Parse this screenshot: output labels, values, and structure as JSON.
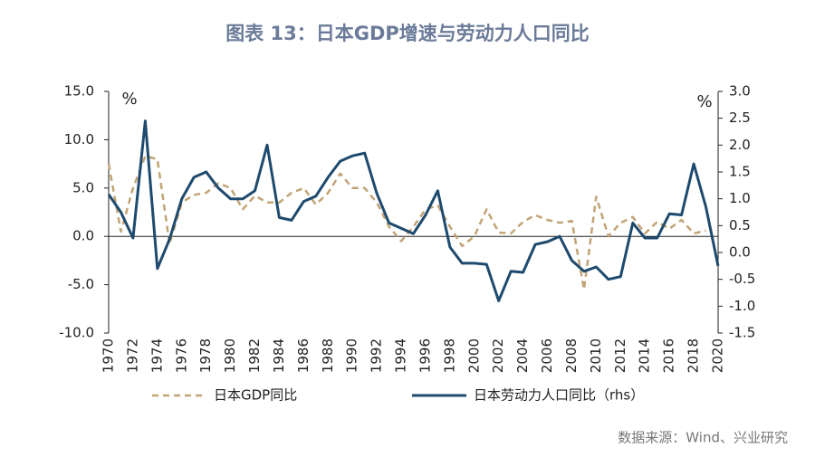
{
  "chart_data": {
    "type": "line",
    "title": "图表 13：日本GDP增速与劳动力人口同比",
    "y_unit": "%",
    "y2_unit": "%",
    "source": "数据来源：Wind、兴业研究",
    "categories": [
      "1970",
      null,
      "1972",
      null,
      "1974",
      null,
      "1976",
      null,
      "1978",
      null,
      "1980",
      null,
      "1982",
      null,
      "1984",
      null,
      "1986",
      null,
      "1988",
      null,
      "1990",
      null,
      "1992",
      null,
      "1994",
      null,
      "1996",
      null,
      "1998",
      null,
      "2000",
      null,
      "2002",
      null,
      "2004",
      null,
      "2006",
      null,
      "2008",
      null,
      "2010",
      null,
      "2012",
      null,
      "2014",
      null,
      "2016",
      null,
      "2018",
      null,
      "2020"
    ],
    "series": [
      {
        "name": "日本GDP同比",
        "color": "#c2a477",
        "dash": true,
        "values": [
          7.5,
          0.5,
          5.0,
          8.3,
          8.0,
          -0.8,
          3.5,
          4.3,
          4.5,
          5.5,
          5.0,
          2.8,
          4.2,
          3.5,
          3.5,
          4.5,
          5.0,
          3.3,
          4.5,
          6.5,
          5.0,
          5.0,
          3.5,
          1.0,
          -0.5,
          1.0,
          2.8,
          3.2,
          1.0,
          -1.0,
          0.0,
          2.8,
          0.4,
          0.3,
          1.5,
          2.2,
          1.7,
          1.4,
          1.6,
          -5.5,
          4.1,
          0.0,
          1.4,
          2.0,
          0.3,
          1.5,
          0.8,
          1.7,
          0.3,
          0.6,
          null
        ]
      },
      {
        "name": "日本劳动力人口同比（rhs）",
        "color": "#1e4a6e",
        "axis": "y2",
        "values": [
          1.08,
          0.75,
          0.27,
          2.45,
          -0.3,
          0.25,
          1.0,
          1.4,
          1.5,
          1.2,
          1.0,
          1.0,
          1.15,
          2.0,
          0.65,
          0.6,
          0.95,
          1.05,
          1.4,
          1.7,
          1.8,
          1.85,
          1.1,
          0.55,
          0.45,
          0.35,
          0.7,
          1.15,
          0.1,
          -0.2,
          -0.2,
          -0.22,
          -0.9,
          -0.35,
          -0.37,
          0.15,
          0.2,
          0.3,
          -0.15,
          -0.35,
          -0.27,
          -0.5,
          -0.45,
          0.55,
          0.27,
          0.27,
          0.72,
          0.7,
          1.65,
          0.85,
          -0.25
        ]
      }
    ],
    "ylim": [
      -10,
      15
    ],
    "yticks": [
      {
        "value": -10,
        "label": "-10.0"
      },
      {
        "value": -5,
        "label": "-5.0"
      },
      {
        "value": 0,
        "label": "0.0"
      },
      {
        "value": 5,
        "label": "5.0"
      },
      {
        "value": 10,
        "label": "10.0"
      },
      {
        "value": 15,
        "label": "15.0"
      }
    ],
    "y2lim": [
      -1.5,
      3.0
    ],
    "y2ticks": [
      {
        "value": -1.5,
        "label": "-1.5"
      },
      {
        "value": -1,
        "label": "-1.0"
      },
      {
        "value": -0.5,
        "label": "-0.5"
      },
      {
        "value": 0,
        "label": "0.0"
      },
      {
        "value": 0.5,
        "label": "0.5"
      },
      {
        "value": 1,
        "label": "1.0"
      },
      {
        "value": 1.5,
        "label": "1.5"
      },
      {
        "value": 2,
        "label": "2.0"
      },
      {
        "value": 2.5,
        "label": "2.5"
      },
      {
        "value": 3,
        "label": "3.0"
      }
    ],
    "grid": false,
    "legend": "bottom"
  }
}
